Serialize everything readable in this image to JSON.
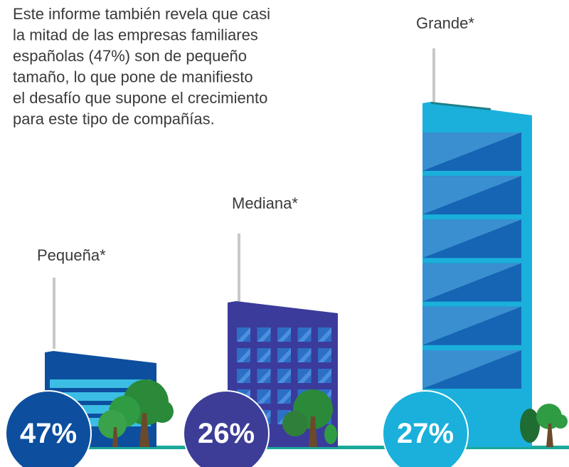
{
  "intro": {
    "lines": [
      "Este informe también revela que casi",
      "la mitad de las empresas familiares",
      "españolas (47%) son de pequeño",
      "tamaño, lo que pone de manifiesto",
      "el desafío que supone el crecimiento",
      "para este tipo de compañías."
    ]
  },
  "sizes": [
    {
      "label": "Pequeña*",
      "percent": "47%"
    },
    {
      "label": "Mediana*",
      "percent": "26%"
    },
    {
      "label": "Grande*",
      "percent": "27%"
    }
  ]
}
